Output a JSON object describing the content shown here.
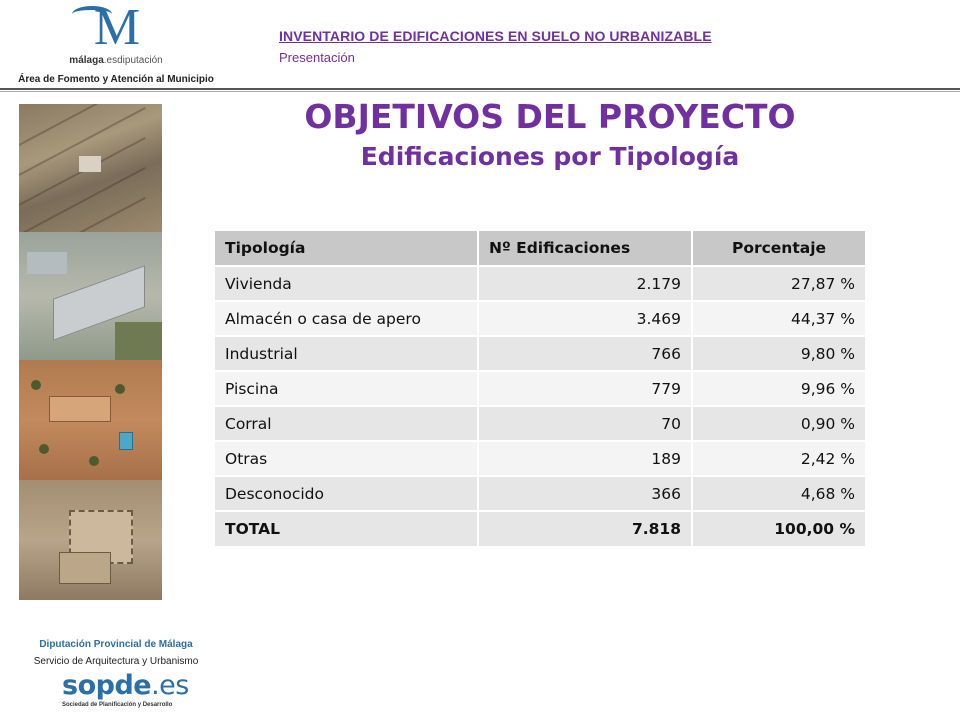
{
  "header": {
    "logo_brand": "málaga",
    "logo_brand_suffix": ".esdiputación",
    "logo_area": "Área de Fomento y Atención al Municipio",
    "title": "INVENTARIO DE EDIFICACIONES EN SUELO NO URBANIZABLE",
    "subtitle": "Presentación"
  },
  "slide": {
    "title": "OBJETIVOS DEL PROYECTO",
    "subtitle": "Edificaciones por Tipología"
  },
  "table": {
    "headers": [
      "Tipología",
      "Nº Edificaciones",
      "Porcentaje"
    ],
    "rows": [
      {
        "tipo": "Vivienda",
        "num": "2.179",
        "pct": "27,87 %"
      },
      {
        "tipo": "Almacén o casa de apero",
        "num": "3.469",
        "pct": "44,37 %"
      },
      {
        "tipo": "Industrial",
        "num": "766",
        "pct": "9,80 %"
      },
      {
        "tipo": "Piscina",
        "num": "779",
        "pct": "9,96 %"
      },
      {
        "tipo": "Corral",
        "num": "70",
        "pct": "0,90 %"
      },
      {
        "tipo": "Otras",
        "num": "189",
        "pct": "2,42 %"
      },
      {
        "tipo": "Desconocido",
        "num": "366",
        "pct": "4,68 %"
      }
    ],
    "total": {
      "tipo": "TOTAL",
      "num": "7.818",
      "pct": "100,00 %"
    }
  },
  "footer": {
    "org": "Diputación Provincial de Málaga",
    "service": "Servicio de Arquitectura y Urbanismo",
    "logo_main": "sopde",
    "logo_suffix": ".es",
    "logo_tagline": "Sociedad de Planificación y Desarrollo"
  },
  "colors": {
    "accent": "#7030a0",
    "brand_blue": "#2a6fa8",
    "header_row": "#c8c8c8",
    "row_dark": "#e6e6e6",
    "row_light": "#f4f4f4"
  }
}
